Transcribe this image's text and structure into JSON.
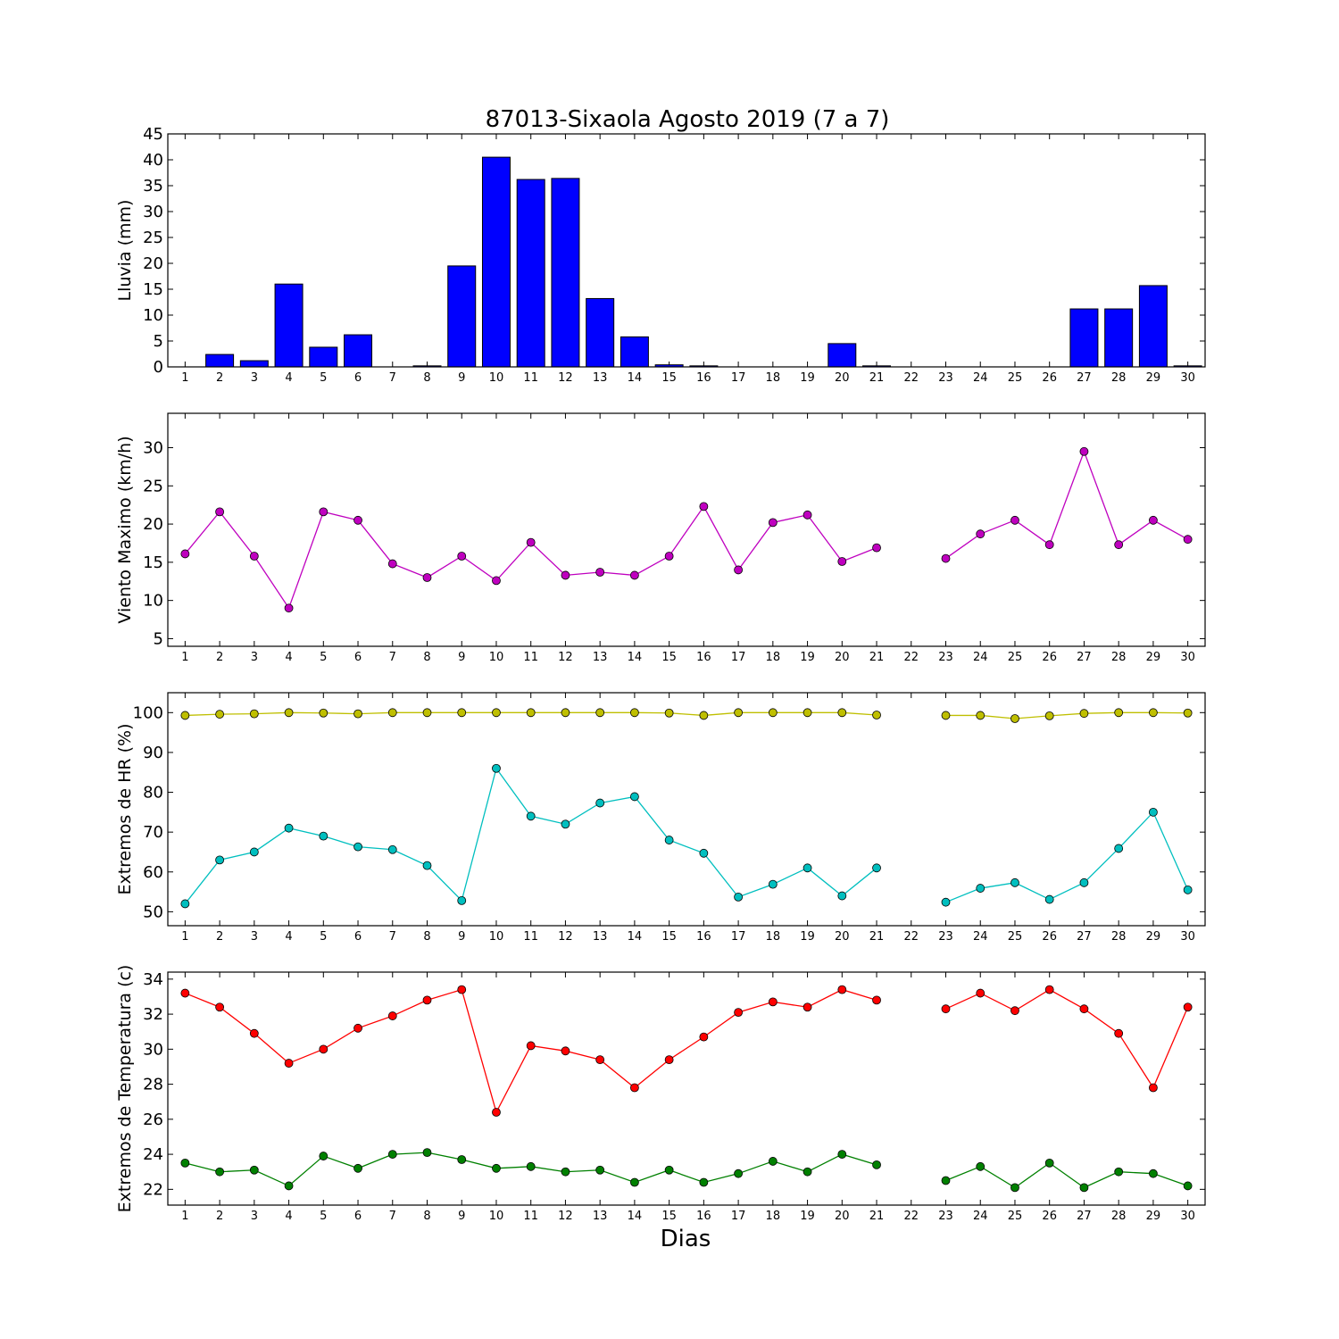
{
  "title": "87013-Sixaola Agosto 2019  (7 a 7)",
  "xlabel": "Dias",
  "chart_data": [
    {
      "type": "bar",
      "title": "87013-Sixaola Agosto 2019  (7 a 7)",
      "ylabel": "Lluvia (mm)",
      "xlabel": "",
      "ylim": [
        0,
        45
      ],
      "yticks": [
        0,
        5,
        10,
        15,
        20,
        25,
        30,
        35,
        40,
        45
      ],
      "x": [
        1,
        2,
        3,
        4,
        5,
        6,
        7,
        8,
        9,
        10,
        11,
        12,
        13,
        14,
        15,
        16,
        17,
        18,
        19,
        20,
        21,
        22,
        23,
        24,
        25,
        26,
        27,
        28,
        29,
        30
      ],
      "series": [
        {
          "color": "#0000ff",
          "values": [
            0,
            2.4,
            1.2,
            16.0,
            3.8,
            6.2,
            0,
            0.2,
            19.5,
            40.5,
            36.2,
            36.4,
            13.2,
            5.8,
            0.4,
            0.2,
            0,
            0,
            0,
            4.5,
            0.2,
            0,
            0,
            0,
            0,
            0,
            11.2,
            11.2,
            15.7,
            0.2
          ]
        }
      ]
    },
    {
      "type": "line",
      "ylabel": "Viento Maximo (km/h)",
      "ylim": [
        4,
        34.5
      ],
      "yticks": [
        5,
        10,
        15,
        20,
        25,
        30
      ],
      "x": [
        1,
        2,
        3,
        4,
        5,
        6,
        7,
        8,
        9,
        10,
        11,
        12,
        13,
        14,
        15,
        16,
        17,
        18,
        19,
        20,
        21,
        22,
        23,
        24,
        25,
        26,
        27,
        28,
        29,
        30
      ],
      "series": [
        {
          "color": "#bf00bf",
          "values": [
            16.1,
            21.6,
            15.8,
            9.0,
            21.6,
            20.5,
            14.8,
            13.0,
            15.8,
            12.6,
            17.6,
            13.3,
            13.7,
            13.3,
            15.8,
            22.3,
            14.0,
            20.2,
            21.2,
            15.1,
            16.9,
            null,
            15.5,
            18.7,
            20.5,
            17.3,
            29.5,
            17.3,
            20.5,
            18.0
          ]
        }
      ]
    },
    {
      "type": "line",
      "ylabel": "Extremos de HR (%)",
      "ylim": [
        46.5,
        105
      ],
      "yticks": [
        50,
        60,
        70,
        80,
        90,
        100
      ],
      "x": [
        1,
        2,
        3,
        4,
        5,
        6,
        7,
        8,
        9,
        10,
        11,
        12,
        13,
        14,
        15,
        16,
        17,
        18,
        19,
        20,
        21,
        22,
        23,
        24,
        25,
        26,
        27,
        28,
        29,
        30
      ],
      "series": [
        {
          "color": "#bfbf00",
          "values": [
            99.3,
            99.6,
            99.7,
            100,
            99.9,
            99.7,
            100,
            100,
            100,
            100,
            100,
            100,
            100,
            100,
            99.9,
            99.3,
            100,
            100,
            100,
            100,
            99.4,
            null,
            99.3,
            99.3,
            98.5,
            99.2,
            99.8,
            100,
            100,
            99.9
          ]
        },
        {
          "color": "#00bfbf",
          "values": [
            52,
            63,
            65,
            71,
            69,
            66.3,
            65.6,
            61.6,
            52.8,
            86,
            74,
            72,
            77.3,
            78.9,
            68,
            64.7,
            53.7,
            56.9,
            61,
            54,
            61,
            null,
            52.4,
            55.9,
            57.3,
            53.1,
            57.3,
            65.9,
            75,
            55.5
          ]
        }
      ]
    },
    {
      "type": "line",
      "ylabel": "Extremos de Temperatura (c)",
      "ylim": [
        21.1,
        34.4
      ],
      "yticks": [
        22,
        24,
        26,
        28,
        30,
        32,
        34
      ],
      "x": [
        1,
        2,
        3,
        4,
        5,
        6,
        7,
        8,
        9,
        10,
        11,
        12,
        13,
        14,
        15,
        16,
        17,
        18,
        19,
        20,
        21,
        22,
        23,
        24,
        25,
        26,
        27,
        28,
        29,
        30
      ],
      "series": [
        {
          "color": "#ff0000",
          "values": [
            33.2,
            32.4,
            30.9,
            29.2,
            30.0,
            31.2,
            31.9,
            32.8,
            33.4,
            26.4,
            30.2,
            29.9,
            29.4,
            27.8,
            29.4,
            30.7,
            32.1,
            32.7,
            32.4,
            33.4,
            32.8,
            null,
            32.3,
            33.2,
            32.2,
            33.4,
            32.3,
            30.9,
            27.8,
            32.4
          ]
        },
        {
          "color": "#008000",
          "values": [
            23.5,
            23.0,
            23.1,
            22.2,
            23.9,
            23.2,
            24.0,
            24.1,
            23.7,
            23.2,
            23.3,
            23.0,
            23.1,
            22.4,
            23.1,
            22.4,
            22.9,
            23.6,
            23.0,
            24.0,
            23.4,
            null,
            22.5,
            23.3,
            22.1,
            23.5,
            22.1,
            23.0,
            22.9,
            22.2
          ]
        }
      ]
    }
  ]
}
